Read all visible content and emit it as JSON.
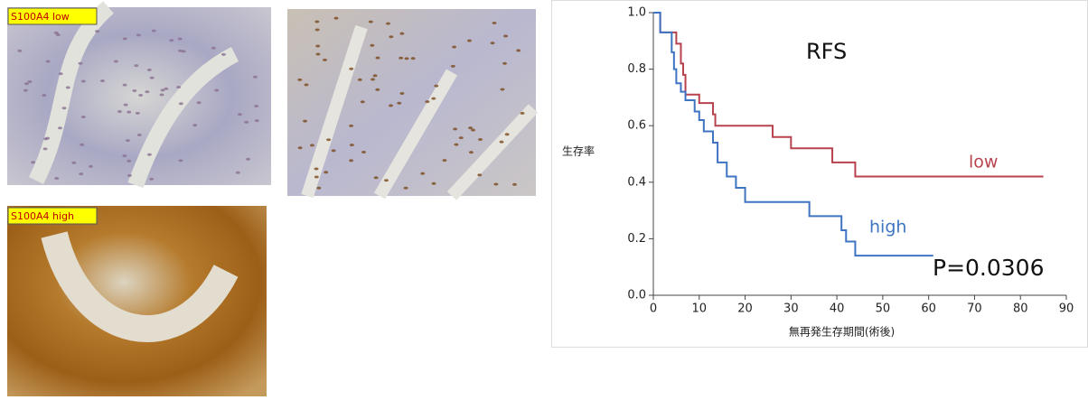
{
  "image_labels": [
    "S100A4 low",
    "S100A4 high"
  ],
  "chart_data": {
    "type": "line",
    "step": "post",
    "title": "RFS",
    "annotation": "P=0.0306",
    "xlabel": "無再発生存期間(術後)",
    "ylabel": "生存率",
    "xlim": [
      0,
      90
    ],
    "xticks": [
      0,
      10,
      20,
      30,
      40,
      50,
      60,
      70,
      80,
      90
    ],
    "ylim": [
      0,
      1
    ],
    "yticks": [
      {
        "value": 0,
        "label": "0.0"
      },
      {
        "value": 0.2,
        "label": "0.2"
      },
      {
        "value": 0.4,
        "label": "0.4"
      },
      {
        "value": 0.6,
        "label": "0.6"
      },
      {
        "value": 0.8,
        "label": "0.8"
      },
      {
        "value": 1,
        "label": "1.0"
      }
    ],
    "series": [
      {
        "name": "low",
        "color": "#b8434f",
        "x": [
          0,
          1.5,
          5,
          6,
          6.5,
          7,
          10,
          13,
          13.5,
          26,
          30,
          39,
          44,
          85
        ],
        "values": [
          1.0,
          0.93,
          0.89,
          0.82,
          0.78,
          0.71,
          0.68,
          0.64,
          0.6,
          0.56,
          0.52,
          0.47,
          0.42,
          0.42
        ]
      },
      {
        "name": "high",
        "color": "#3e74c2",
        "x": [
          0,
          1.5,
          4,
          4.5,
          5,
          6,
          7,
          9,
          10,
          11,
          13,
          14,
          16,
          18,
          20,
          34,
          41,
          42,
          44,
          61
        ],
        "values": [
          1.0,
          0.93,
          0.86,
          0.8,
          0.75,
          0.72,
          0.69,
          0.65,
          0.62,
          0.58,
          0.54,
          0.47,
          0.42,
          0.38,
          0.33,
          0.28,
          0.23,
          0.19,
          0.14,
          0.14
        ]
      }
    ]
  }
}
